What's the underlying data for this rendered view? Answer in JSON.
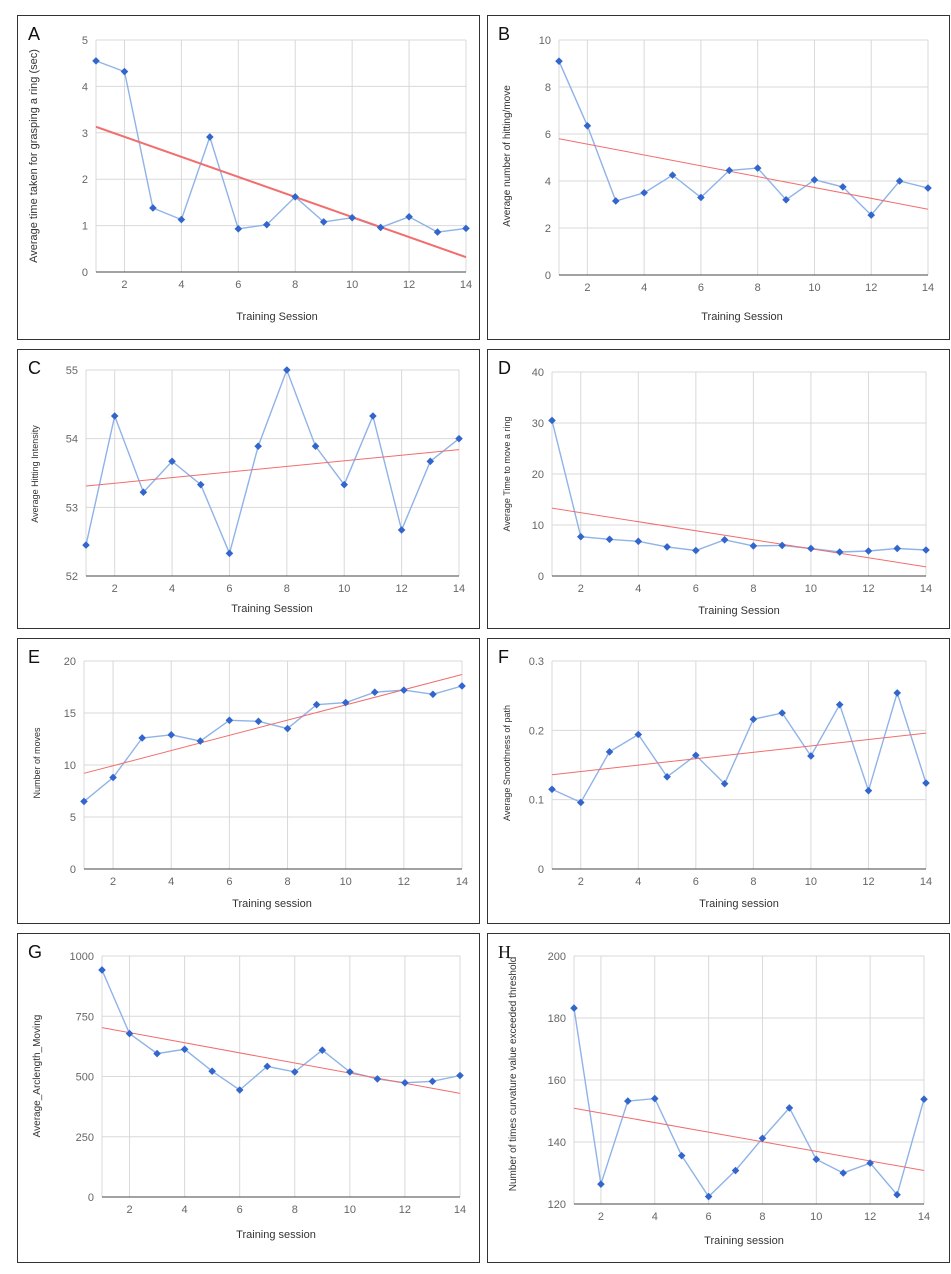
{
  "colors": {
    "series": "#3366cc",
    "series_line": "#8fb3e8",
    "trend": "#f26d6d",
    "grid": "#d9d9d9"
  },
  "chart_data": [
    {
      "id": "A",
      "type": "line",
      "letter": "A",
      "xlabel": "Training Session",
      "ylabel": "Average time taken for grasping a ring (sec)",
      "x": [
        1,
        2,
        3,
        4,
        5,
        6,
        7,
        8,
        9,
        10,
        11,
        12,
        13,
        14
      ],
      "series": [
        {
          "values": [
            4.55,
            4.32,
            1.38,
            1.13,
            2.91,
            0.93,
            1.02,
            1.62,
            1.08,
            1.17,
            0.96,
            1.19,
            0.86,
            0.94
          ]
        }
      ],
      "trendline": [
        3.13,
        0.32
      ],
      "xlim": [
        1,
        14
      ],
      "ylim": [
        0,
        5
      ],
      "xticks": [
        2,
        4,
        6,
        8,
        10,
        12,
        14
      ],
      "yticks": [
        0,
        1,
        2,
        3,
        4,
        5
      ],
      "grid": true,
      "trend_width": 2
    },
    {
      "id": "B",
      "type": "line",
      "letter": "B",
      "xlabel": "Training Session",
      "ylabel": "Average number of hitting/move",
      "x": [
        1,
        2,
        3,
        4,
        5,
        6,
        7,
        8,
        9,
        10,
        11,
        12,
        13,
        14
      ],
      "series": [
        {
          "values": [
            9.1,
            6.35,
            3.15,
            3.5,
            4.25,
            3.3,
            4.45,
            4.55,
            3.2,
            4.05,
            3.75,
            2.55,
            4.0,
            3.7
          ]
        }
      ],
      "trendline": [
        5.8,
        2.8
      ],
      "xlim": [
        1,
        14
      ],
      "ylim": [
        0,
        10
      ],
      "xticks": [
        2,
        4,
        6,
        8,
        10,
        12,
        14
      ],
      "yticks": [
        0,
        2,
        4,
        6,
        8,
        10
      ],
      "grid": true,
      "trend_width": 1
    },
    {
      "id": "C",
      "type": "line",
      "letter": "C",
      "xlabel": "Training Session",
      "ylabel": "Average Hitting Intensity",
      "x": [
        1,
        2,
        3,
        4,
        5,
        6,
        7,
        8,
        9,
        10,
        11,
        12,
        13,
        14
      ],
      "series": [
        {
          "values": [
            52.45,
            54.33,
            53.22,
            53.67,
            53.33,
            52.33,
            53.89,
            55.0,
            53.89,
            53.33,
            54.33,
            52.67,
            53.67,
            54.0
          ]
        }
      ],
      "trendline": [
        53.31,
        53.84
      ],
      "xlim": [
        1,
        14
      ],
      "ylim": [
        52,
        55
      ],
      "xticks": [
        2,
        4,
        6,
        8,
        10,
        12,
        14
      ],
      "yticks": [
        52,
        53,
        54,
        55
      ],
      "grid": true,
      "trend_width": 1
    },
    {
      "id": "D",
      "type": "line",
      "letter": "D",
      "xlabel": "Training Session",
      "ylabel": "Average Time to move a ring",
      "x": [
        1,
        2,
        3,
        4,
        5,
        6,
        7,
        8,
        9,
        10,
        11,
        12,
        13,
        14
      ],
      "series": [
        {
          "values": [
            30.5,
            7.7,
            7.2,
            6.8,
            5.7,
            5.0,
            7.1,
            5.9,
            6.0,
            5.4,
            4.7,
            4.9,
            5.4,
            5.1
          ]
        }
      ],
      "trendline": [
        13.3,
        1.8
      ],
      "xlim": [
        1,
        14
      ],
      "ylim": [
        0,
        40
      ],
      "xticks": [
        2,
        4,
        6,
        8,
        10,
        12,
        14
      ],
      "yticks": [
        0,
        10,
        20,
        30,
        40
      ],
      "grid": true,
      "trend_width": 1
    },
    {
      "id": "E",
      "type": "line",
      "letter": "E",
      "xlabel": "Training session",
      "ylabel": "Number of moves",
      "x": [
        1,
        2,
        3,
        4,
        5,
        6,
        7,
        8,
        9,
        10,
        11,
        12,
        13,
        14
      ],
      "series": [
        {
          "values": [
            6.5,
            8.8,
            12.6,
            12.9,
            12.3,
            14.3,
            14.2,
            13.5,
            15.8,
            16.0,
            17.0,
            17.2,
            16.8,
            17.6
          ]
        }
      ],
      "trendline": [
        9.2,
        18.7
      ],
      "xlim": [
        1,
        14
      ],
      "ylim": [
        0,
        20
      ],
      "xticks": [
        2,
        4,
        6,
        8,
        10,
        12,
        14
      ],
      "yticks": [
        0,
        5,
        10,
        15,
        20
      ],
      "grid": true,
      "trend_width": 1
    },
    {
      "id": "F",
      "type": "line",
      "letter": "F",
      "xlabel": "Training session",
      "ylabel": "Average Smoothness of path",
      "x": [
        1,
        2,
        3,
        4,
        5,
        6,
        7,
        8,
        9,
        10,
        11,
        12,
        13,
        14
      ],
      "series": [
        {
          "values": [
            0.115,
            0.096,
            0.169,
            0.194,
            0.133,
            0.164,
            0.123,
            0.216,
            0.225,
            0.163,
            0.237,
            0.113,
            0.254,
            0.124
          ]
        }
      ],
      "trendline": [
        0.136,
        0.196
      ],
      "xlim": [
        1,
        14
      ],
      "ylim": [
        0,
        0.3
      ],
      "xticks": [
        2,
        4,
        6,
        8,
        10,
        12,
        14
      ],
      "yticks": [
        0,
        0.1,
        0.2,
        0.3
      ],
      "grid": true,
      "trend_width": 1
    },
    {
      "id": "G",
      "type": "line",
      "letter": "G",
      "xlabel": "Training session",
      "ylabel": "Average_Arclength_Moving",
      "x": [
        1,
        2,
        3,
        4,
        5,
        6,
        7,
        8,
        9,
        10,
        11,
        12,
        13,
        14
      ],
      "series": [
        {
          "values": [
            942,
            678,
            595,
            613,
            522,
            444,
            542,
            519,
            609,
            519,
            490,
            474,
            480,
            504
          ]
        }
      ],
      "trendline": [
        703,
        430
      ],
      "xlim": [
        1,
        14
      ],
      "ylim": [
        0,
        1000
      ],
      "xticks": [
        2,
        4,
        6,
        8,
        10,
        12,
        14
      ],
      "yticks": [
        0,
        250,
        500,
        750,
        1000
      ],
      "grid": true,
      "trend_width": 1
    },
    {
      "id": "H",
      "type": "line",
      "letter": "H",
      "xlabel": "Training session",
      "ylabel": "Number of times curvature value exceeded threshold",
      "x": [
        1,
        2,
        3,
        4,
        5,
        6,
        7,
        8,
        9,
        10,
        11,
        12,
        13,
        14
      ],
      "series": [
        {
          "values": [
            183.2,
            126.4,
            153.2,
            154.0,
            135.6,
            122.4,
            130.8,
            141.2,
            151.0,
            134.4,
            130.0,
            133.2,
            123.0,
            153.8
          ]
        }
      ],
      "trendline": [
        150.9,
        130.8
      ],
      "xlim": [
        1,
        14
      ],
      "ylim": [
        120,
        200
      ],
      "xticks": [
        2,
        4,
        6,
        8,
        10,
        12,
        14
      ],
      "yticks": [
        120,
        140,
        160,
        180,
        200
      ],
      "grid": true,
      "trend_width": 1
    }
  ]
}
